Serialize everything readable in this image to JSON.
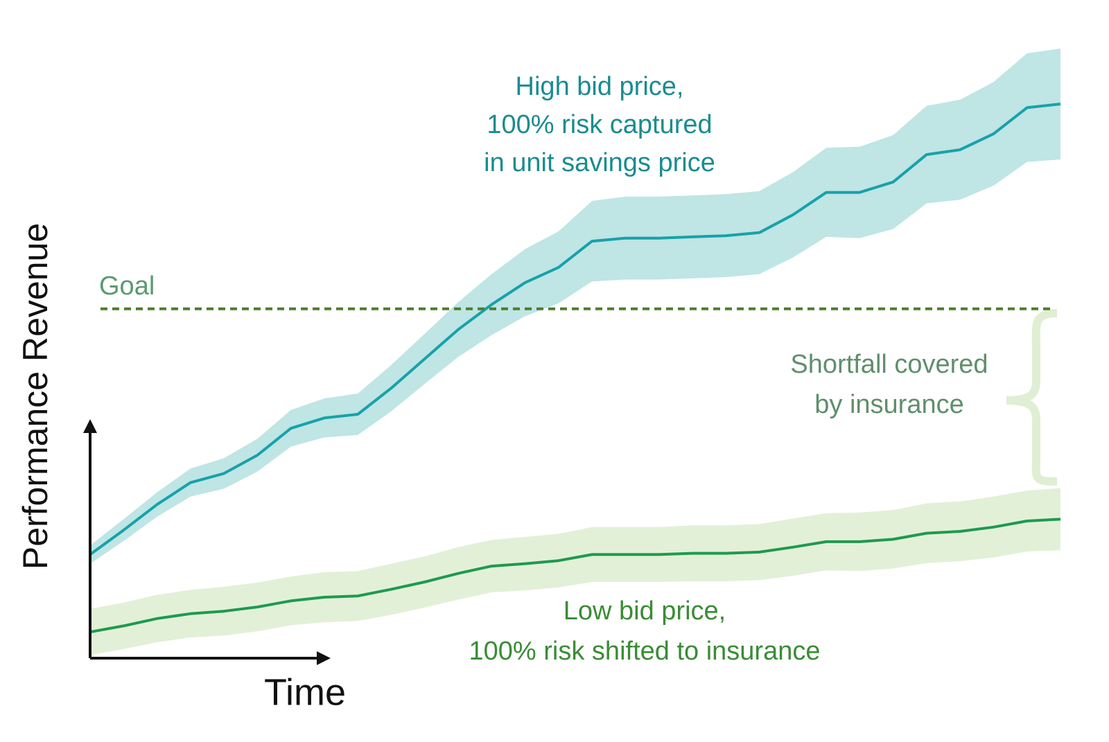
{
  "chart_data": {
    "type": "line",
    "x_label": "Time",
    "y_label": "Performance Revenue",
    "x": [
      0,
      1,
      2,
      3,
      4,
      5,
      6,
      7,
      8,
      9,
      10,
      11,
      12,
      13,
      14,
      15,
      16,
      17,
      18,
      19,
      20,
      21,
      22,
      23,
      24,
      25,
      26,
      27,
      28,
      29
    ],
    "xlim": [
      0,
      29
    ],
    "ylim": [
      0,
      100
    ],
    "series": [
      {
        "color": "#17a2a8",
        "band_color": "#bfe5e5",
        "values": [
          17.0,
          21.0,
          25.2,
          28.8,
          30.3,
          33.3,
          37.7,
          39.4,
          40.0,
          44.3,
          49.1,
          53.9,
          58.0,
          61.6,
          64.1,
          68.4,
          68.9,
          68.9,
          69.1,
          69.3,
          69.8,
          72.7,
          76.4,
          76.4,
          78.1,
          82.6,
          83.4,
          86.0,
          90.3,
          90.9
        ],
        "errors": [
          1.5,
          1.8,
          2.0,
          2.3,
          2.5,
          2.7,
          3.0,
          3.2,
          3.4,
          3.8,
          4.1,
          4.5,
          5.0,
          5.5,
          5.9,
          6.6,
          6.8,
          6.8,
          6.8,
          6.8,
          6.8,
          7.0,
          7.3,
          7.5,
          7.7,
          8.0,
          8.2,
          8.5,
          8.9,
          9.1
        ]
      },
      {
        "color": "#1e9a4e",
        "band_color": "#e3f0d8",
        "values": [
          4.3,
          5.3,
          6.5,
          7.3,
          7.7,
          8.4,
          9.4,
          10.0,
          10.2,
          11.3,
          12.5,
          13.9,
          15.1,
          15.5,
          16.0,
          17.0,
          17.0,
          17.0,
          17.2,
          17.2,
          17.4,
          18.2,
          19.1,
          19.1,
          19.5,
          20.5,
          20.8,
          21.5,
          22.5,
          22.8
        ],
        "errors": [
          3.8,
          3.8,
          3.9,
          3.9,
          4.0,
          4.0,
          4.0,
          4.1,
          4.1,
          4.2,
          4.2,
          4.3,
          4.3,
          4.4,
          4.4,
          4.5,
          4.5,
          4.5,
          4.6,
          4.6,
          4.6,
          4.7,
          4.7,
          4.8,
          4.8,
          4.9,
          4.9,
          5.0,
          5.0,
          5.1
        ]
      }
    ],
    "goal": {
      "text": "Goal",
      "value": 57.3,
      "color": "#4e7d2a"
    },
    "high_label": {
      "lines": [
        "High bid price,",
        "100% risk captured",
        "in unit savings price"
      ],
      "color": "#1a8c8f"
    },
    "low_label": {
      "lines": [
        "Low bid price,",
        "100% risk shifted to insurance"
      ],
      "color": "#3a8c35"
    },
    "shortfall_label": {
      "lines": [
        "Shortfall covered",
        "by insurance"
      ],
      "color": "#5f8f6c"
    }
  }
}
